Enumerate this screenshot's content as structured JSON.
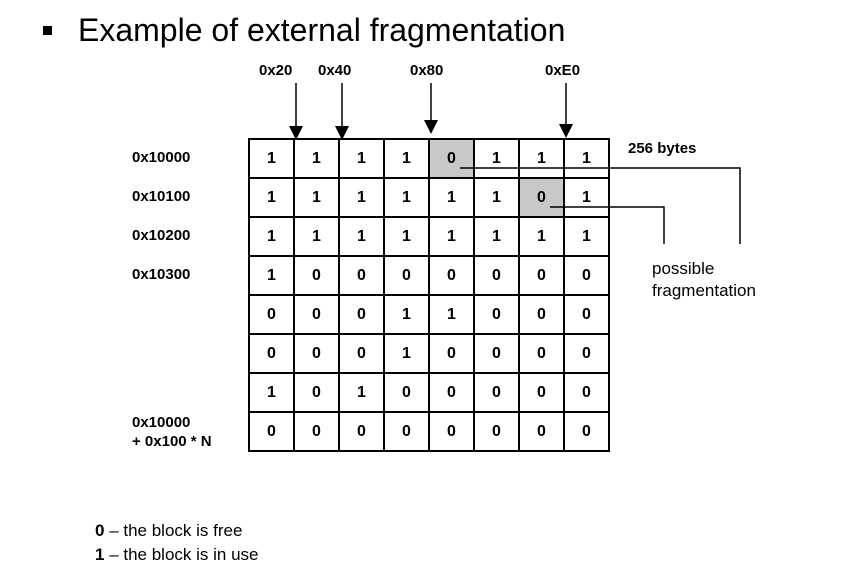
{
  "title": "Example of external fragmentation",
  "top_addresses": [
    "0x20",
    "0x40",
    "0x80",
    "0xE0"
  ],
  "row_labels": [
    "0x10000",
    "0x10100",
    "0x10200",
    "0x10300"
  ],
  "last_row_label": {
    "line1": "0x10000",
    "line2": "+ 0x100 * N"
  },
  "grid": [
    [
      "1",
      "1",
      "1",
      "1",
      "0",
      "1",
      "1",
      "1"
    ],
    [
      "1",
      "1",
      "1",
      "1",
      "1",
      "1",
      "0",
      "1"
    ],
    [
      "1",
      "1",
      "1",
      "1",
      "1",
      "1",
      "1",
      "1"
    ],
    [
      "1",
      "0",
      "0",
      "0",
      "0",
      "0",
      "0",
      "0"
    ],
    [
      "0",
      "0",
      "0",
      "1",
      "1",
      "0",
      "0",
      "0"
    ],
    [
      "0",
      "0",
      "0",
      "1",
      "0",
      "0",
      "0",
      "0"
    ],
    [
      "1",
      "0",
      "1",
      "0",
      "0",
      "0",
      "0",
      "0"
    ],
    [
      "0",
      "0",
      "0",
      "0",
      "0",
      "0",
      "0",
      "0"
    ]
  ],
  "highlighted_cells": [
    [
      0,
      4
    ],
    [
      1,
      6
    ]
  ],
  "size_label": "256 bytes",
  "annotation": {
    "line1": "possible",
    "line2": "fragmentation"
  },
  "legend": [
    {
      "symbol": "0",
      "text": " – the block is free"
    },
    {
      "symbol": "1",
      "text": " – the block is in use"
    }
  ],
  "colors": {
    "highlight": "#c8c8c8"
  }
}
